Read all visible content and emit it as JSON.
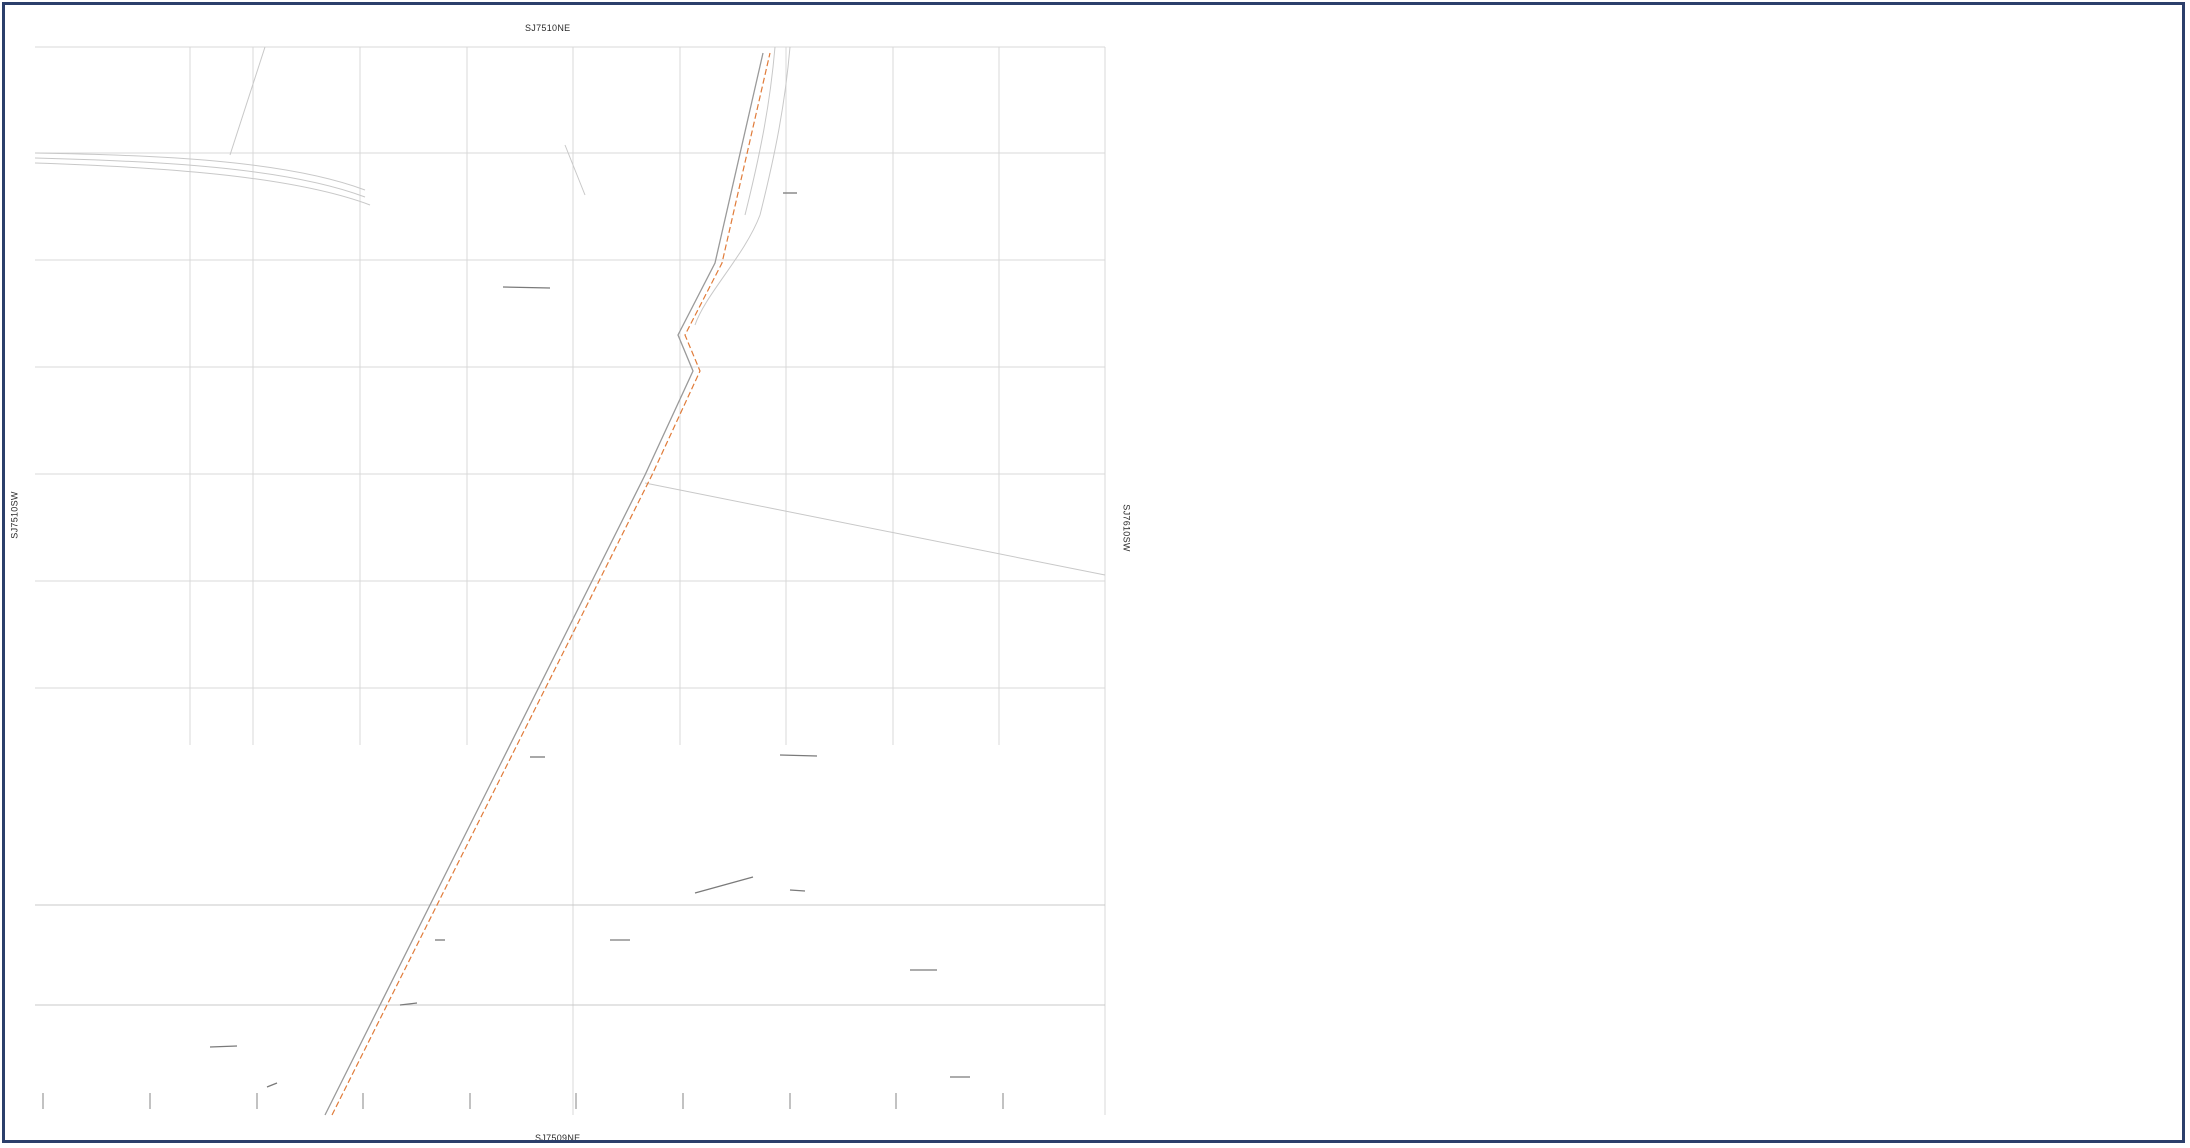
{
  "map": {
    "sheet_labels": {
      "top": "SJ7510NE",
      "bottom": "SJ7509NE",
      "left": "SJ7510SW",
      "right": "SJ7610SW"
    },
    "colors": {
      "border": "#2b3f6b",
      "grid": "#d9d9d9",
      "route": "#e07b39",
      "linework": "#b8b8b8",
      "feature": "#7a7a7a"
    }
  }
}
